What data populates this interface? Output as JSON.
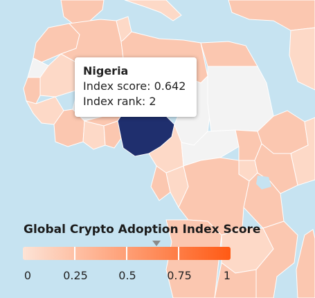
{
  "tooltip": {
    "country": "Nigeria",
    "score_line": "Index score: 0.642",
    "rank_line": "Index rank: 2"
  },
  "legend": {
    "title": "Global Crypto Adoption Index Score",
    "ticks": [
      "0",
      "0.25",
      "0.5",
      "0.75",
      "1"
    ],
    "min": 0,
    "max": 1,
    "marker_value": 0.642,
    "color_low": "#fde3d6",
    "color_high": "#ff5a14"
  },
  "colors": {
    "ocean": "#c6e3f1",
    "land_default": "#fbc7b0",
    "land_light": "#fdd9c7",
    "no_data": "#f3f3f3",
    "highlight": "#1f2f6e",
    "border": "#ffffff"
  }
}
